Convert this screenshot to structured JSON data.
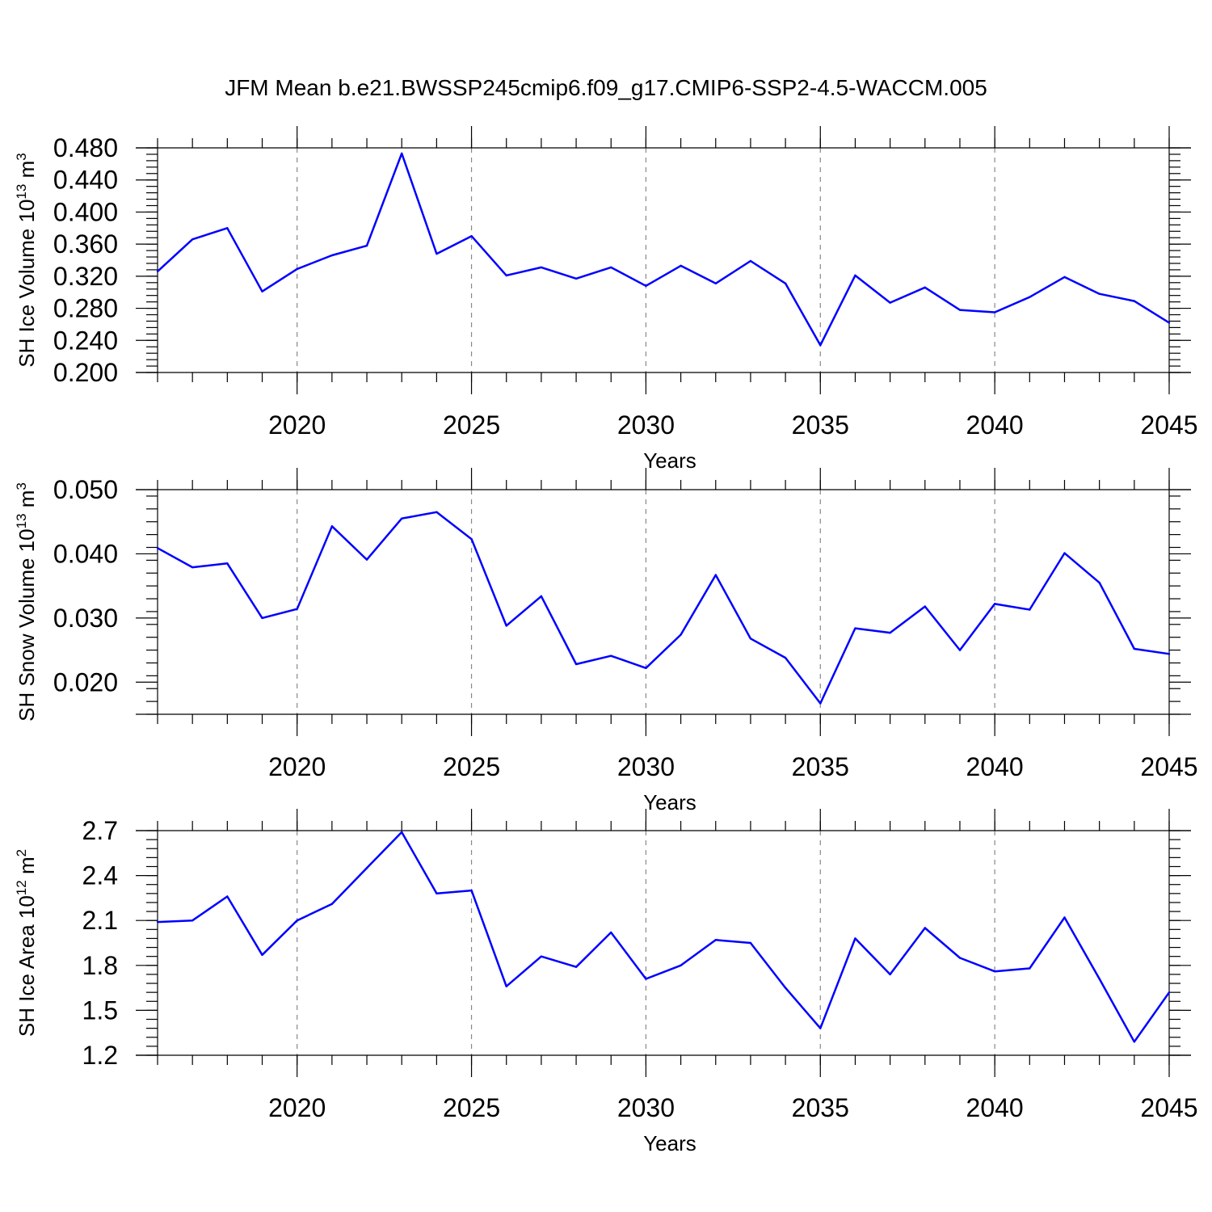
{
  "title": "JFM Mean b.e21.BWSSP245cmip6.f09_g17.CMIP6-SSP2-4.5-WACCM.005",
  "chart_data": [
    {
      "type": "line",
      "ylabel": "SH Ice Volume 10",
      "ylabel_exp": "13",
      "ylabel_unit": " m",
      "ylabel_unit_exp": "3",
      "xlabel": "Years",
      "xlim": [
        2016,
        2045
      ],
      "ylim": [
        0.2,
        0.48
      ],
      "yticks": [
        "0.200",
        "0.240",
        "0.280",
        "0.320",
        "0.360",
        "0.400",
        "0.440",
        "0.480"
      ],
      "yminor": 0.008,
      "xticks": [
        "2020",
        "2025",
        "2030",
        "2035",
        "2040",
        "2045"
      ],
      "grid": "vertical dashed at major x ticks",
      "color": "#0000ff",
      "x": [
        2016,
        2017,
        2018,
        2019,
        2020,
        2021,
        2022,
        2023,
        2024,
        2025,
        2026,
        2027,
        2028,
        2029,
        2030,
        2031,
        2032,
        2033,
        2034,
        2035,
        2036,
        2037,
        2038,
        2039,
        2040,
        2041,
        2042,
        2043,
        2044,
        2045
      ],
      "values": [
        0.326,
        0.366,
        0.38,
        0.301,
        0.329,
        0.346,
        0.358,
        0.473,
        0.348,
        0.37,
        0.321,
        0.331,
        0.317,
        0.331,
        0.308,
        0.333,
        0.311,
        0.339,
        0.311,
        0.234,
        0.321,
        0.287,
        0.306,
        0.278,
        0.275,
        0.294,
        0.319,
        0.298,
        0.289,
        0.262
      ]
    },
    {
      "type": "line",
      "ylabel": "SH Snow Volume 10",
      "ylabel_exp": "13",
      "ylabel_unit": " m",
      "ylabel_unit_exp": "3",
      "xlabel": "Years",
      "xlim": [
        2016,
        2045
      ],
      "ylim": [
        0.015,
        0.05
      ],
      "yticks": [
        "0.020",
        "0.030",
        "0.040",
        "0.050"
      ],
      "ytick_values": [
        0.02,
        0.03,
        0.04,
        0.05
      ],
      "yminor": 0.002,
      "xticks": [
        "2020",
        "2025",
        "2030",
        "2035",
        "2040",
        "2045"
      ],
      "grid": "vertical dashed at major x ticks",
      "color": "#0000ff",
      "x": [
        2016,
        2017,
        2018,
        2019,
        2020,
        2021,
        2022,
        2023,
        2024,
        2025,
        2026,
        2027,
        2028,
        2029,
        2030,
        2031,
        2032,
        2033,
        2034,
        2035,
        2036,
        2037,
        2038,
        2039,
        2040,
        2041,
        2042,
        2043,
        2044,
        2045
      ],
      "values": [
        0.0409,
        0.0379,
        0.0385,
        0.03,
        0.0314,
        0.0443,
        0.0391,
        0.0455,
        0.0465,
        0.0423,
        0.0288,
        0.0334,
        0.0228,
        0.0241,
        0.0222,
        0.0274,
        0.0367,
        0.0268,
        0.0238,
        0.0167,
        0.0284,
        0.0277,
        0.0318,
        0.025,
        0.0322,
        0.0313,
        0.0401,
        0.0355,
        0.0252,
        0.0244
      ]
    },
    {
      "type": "line",
      "ylabel": "SH Ice Area 10",
      "ylabel_exp": "12",
      "ylabel_unit": " m",
      "ylabel_unit_exp": "2",
      "xlabel": "Years",
      "xlim": [
        2016,
        2045
      ],
      "ylim": [
        1.2,
        2.7
      ],
      "yticks": [
        "1.2",
        "1.5",
        "1.8",
        "2.1",
        "2.4",
        "2.7"
      ],
      "yminor": 0.06,
      "xticks": [
        "2020",
        "2025",
        "2030",
        "2035",
        "2040",
        "2045"
      ],
      "grid": "vertical dashed at major x ticks",
      "color": "#0000ff",
      "x": [
        2016,
        2017,
        2018,
        2019,
        2020,
        2021,
        2022,
        2023,
        2024,
        2025,
        2026,
        2027,
        2028,
        2029,
        2030,
        2031,
        2032,
        2033,
        2034,
        2035,
        2036,
        2037,
        2038,
        2039,
        2040,
        2041,
        2042,
        2043,
        2044,
        2045
      ],
      "values": [
        2.09,
        2.1,
        2.26,
        1.87,
        2.1,
        2.21,
        2.45,
        2.69,
        2.28,
        2.3,
        1.66,
        1.86,
        1.79,
        2.02,
        1.71,
        1.8,
        1.97,
        1.95,
        1.65,
        1.38,
        1.98,
        1.74,
        2.05,
        1.85,
        1.76,
        1.78,
        2.12,
        1.71,
        1.29,
        1.62
      ]
    }
  ]
}
